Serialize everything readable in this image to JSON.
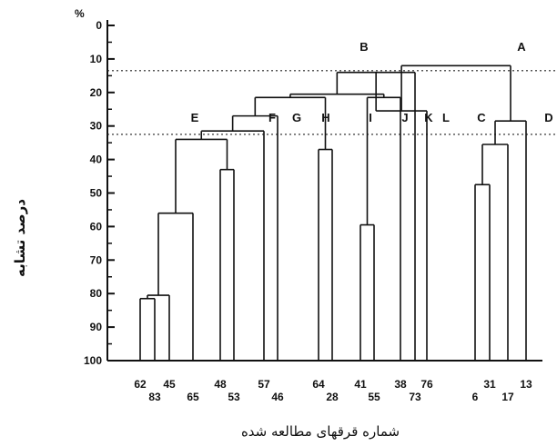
{
  "chart_data": {
    "type": "dendrogram",
    "title": "",
    "xlabel": "شماره قرقهای مطالعه شده",
    "ylabel": "درصد تشابه",
    "y_unit": "%",
    "ylim": [
      0,
      100
    ],
    "y_inverted": true,
    "y_ticks": [
      "0",
      "10",
      "20",
      "30",
      "40",
      "50",
      "60",
      "70",
      "80",
      "90",
      "100"
    ],
    "leaves": [
      {
        "label": "62",
        "row": "upper"
      },
      {
        "label": "83",
        "row": "lower"
      },
      {
        "label": "45",
        "row": "upper"
      },
      {
        "label": "65",
        "row": "lower"
      },
      {
        "label": "48",
        "row": "upper"
      },
      {
        "label": "53",
        "row": "lower"
      },
      {
        "label": "57",
        "row": "upper"
      },
      {
        "label": "46",
        "row": "lower"
      },
      {
        "label": "64",
        "row": "upper"
      },
      {
        "label": "28",
        "row": "lower"
      },
      {
        "label": "41",
        "row": "upper"
      },
      {
        "label": "55",
        "row": "lower"
      },
      {
        "label": "38",
        "row": "upper"
      },
      {
        "label": "73",
        "row": "lower"
      },
      {
        "label": "76",
        "row": "upper"
      },
      {
        "label": "6",
        "row": "lower"
      },
      {
        "label": "31",
        "row": "upper"
      },
      {
        "label": "17",
        "row": "lower"
      },
      {
        "label": "13",
        "row": "upper"
      }
    ],
    "merges": [
      {
        "left": "62",
        "right": "83",
        "similarity": 81.5
      },
      {
        "left": "62-83",
        "right": "45",
        "similarity": 80.5
      },
      {
        "left": "62-83-45",
        "right": "65",
        "similarity": 56
      },
      {
        "left": "48",
        "right": "53",
        "similarity": 43
      },
      {
        "left": "62-65",
        "right": "48-53",
        "similarity": 34
      },
      {
        "left": "E",
        "right": "57",
        "similarity": 31.5
      },
      {
        "left": "E-57",
        "right": "46",
        "similarity": 27
      },
      {
        "left": "64",
        "right": "28",
        "similarity": 37
      },
      {
        "left": "F",
        "right": "64-28",
        "similarity": 21.5
      },
      {
        "left": "41",
        "right": "55",
        "similarity": 59.5
      },
      {
        "left": "41-55",
        "right": "38",
        "similarity": 21.5
      },
      {
        "left": "H",
        "right": "I",
        "similarity": 20.5
      },
      {
        "left": "H-I",
        "right": "73",
        "similarity": 14
      },
      {
        "left": "J",
        "right": "76",
        "similarity": 25.5
      },
      {
        "left": "6",
        "right": "31",
        "similarity": 47.5
      },
      {
        "left": "6-31",
        "right": "17",
        "similarity": 35.5
      },
      {
        "left": "C",
        "right": "13",
        "similarity": 28.5
      },
      {
        "left": "L",
        "right": "D",
        "similarity": 12
      }
    ],
    "reference_lines": [
      13.5,
      32.5
    ],
    "group_labels": [
      "A",
      "B",
      "C",
      "D",
      "E",
      "F",
      "G",
      "H",
      "I",
      "J",
      "K",
      "L"
    ]
  }
}
